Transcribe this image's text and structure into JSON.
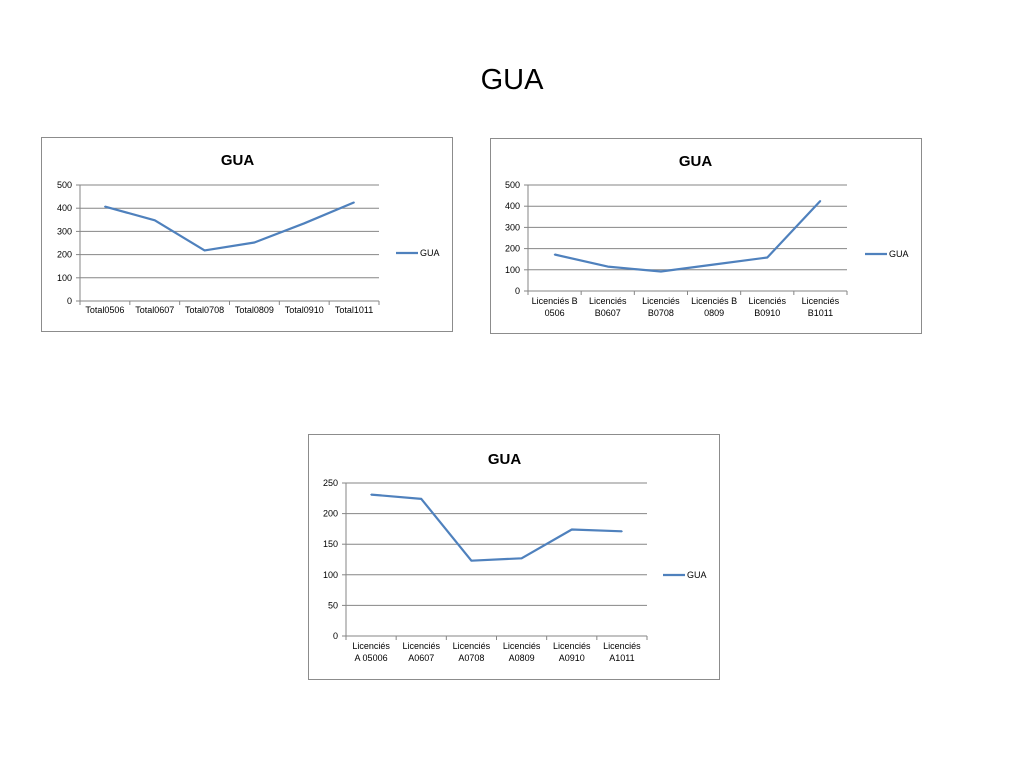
{
  "slide": {
    "title": "GUA",
    "stray_glyph": "["
  },
  "colors": {
    "series": "#4f81bd",
    "grid": "#868686"
  },
  "chart_data": [
    {
      "type": "line",
      "title": "GUA",
      "categories": [
        [
          "Total0506"
        ],
        [
          "Total0607"
        ],
        [
          "Total0708"
        ],
        [
          "Total0809"
        ],
        [
          "Total0910"
        ],
        [
          "Total1011"
        ]
      ],
      "series": [
        {
          "name": "GUA",
          "values": [
            407,
            348,
            218,
            252,
            335,
            425
          ]
        }
      ],
      "ylim": [
        0,
        500
      ],
      "yticks": [
        0,
        100,
        200,
        300,
        400,
        500
      ],
      "grid": true,
      "legend": "right"
    },
    {
      "type": "line",
      "title": "GUA",
      "categories": [
        [
          "Licenciés B",
          "0506"
        ],
        [
          "Licenciés",
          "B0607"
        ],
        [
          "Licenciés",
          "B0708"
        ],
        [
          "Licenciés B",
          "0809"
        ],
        [
          "Licenciés",
          "B0910"
        ],
        [
          "Licenciés",
          "B1011"
        ]
      ],
      "series": [
        {
          "name": "GUA",
          "values": [
            172,
            115,
            92,
            125,
            158,
            425
          ]
        }
      ],
      "ylim": [
        0,
        500
      ],
      "yticks": [
        0,
        100,
        200,
        300,
        400,
        500
      ],
      "grid": true,
      "legend": "right"
    },
    {
      "type": "line",
      "title": "GUA",
      "categories": [
        [
          "Licenciés",
          "A 05006"
        ],
        [
          "Licenciés",
          "A0607"
        ],
        [
          "Licenciés",
          "A0708"
        ],
        [
          "Licenciés",
          "A0809"
        ],
        [
          "Licenciés",
          "A0910"
        ],
        [
          "Licenciés",
          "A1011"
        ]
      ],
      "series": [
        {
          "name": "GUA",
          "values": [
            231,
            224,
            123,
            127,
            174,
            171
          ]
        }
      ],
      "ylim": [
        0,
        250
      ],
      "yticks": [
        0,
        50,
        100,
        150,
        200,
        250
      ],
      "grid": true,
      "legend": "right"
    }
  ]
}
